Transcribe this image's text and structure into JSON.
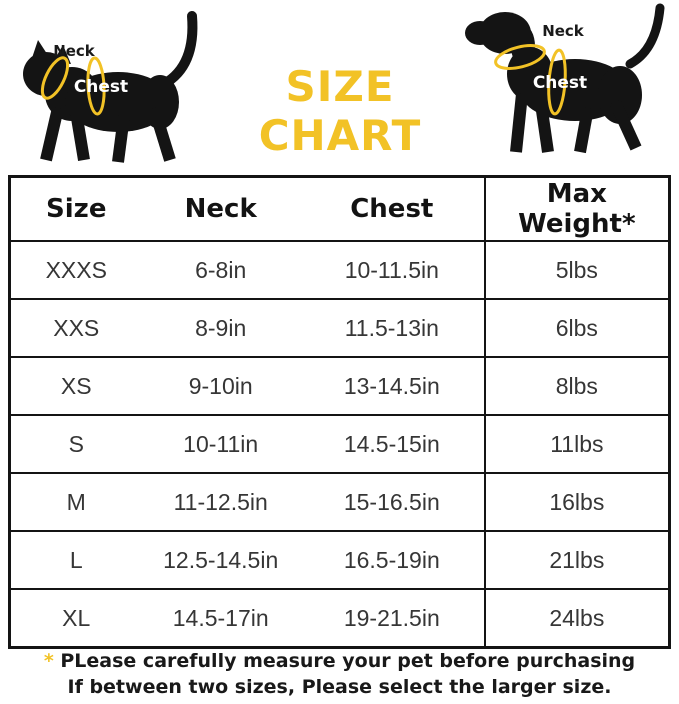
{
  "header": {
    "title": "SIZE CHART",
    "cat": {
      "neck_label": "Neck",
      "chest_label": "Chest"
    },
    "dog": {
      "neck_label": "Neck",
      "chest_label": "Chest"
    }
  },
  "chart_data": {
    "type": "table",
    "title": "SIZE CHART",
    "columns": [
      "Size",
      "Neck",
      "Chest",
      "Max Weight*"
    ],
    "rows": [
      [
        "XXXS",
        "6-8in",
        "10-11.5in",
        "5lbs"
      ],
      [
        "XXS",
        "8-9in",
        "11.5-13in",
        "6lbs"
      ],
      [
        "XS",
        "9-10in",
        "13-14.5in",
        "8lbs"
      ],
      [
        "S",
        "10-11in",
        "14.5-15in",
        "11lbs"
      ],
      [
        "M",
        "11-12.5in",
        "15-16.5in",
        "16lbs"
      ],
      [
        "L",
        "12.5-14.5in",
        "16.5-19in",
        "21lbs"
      ],
      [
        "XL",
        "14.5-17in",
        "19-21.5in",
        "24lbs"
      ]
    ]
  },
  "footer": {
    "asterisk": "*",
    "line1": "PLease carefully measure your pet before purchasing",
    "line2": "If between two sizes, Please select the larger size."
  },
  "colors": {
    "accent_yellow": "#F2C226",
    "silhouette_ink": "#141414"
  }
}
